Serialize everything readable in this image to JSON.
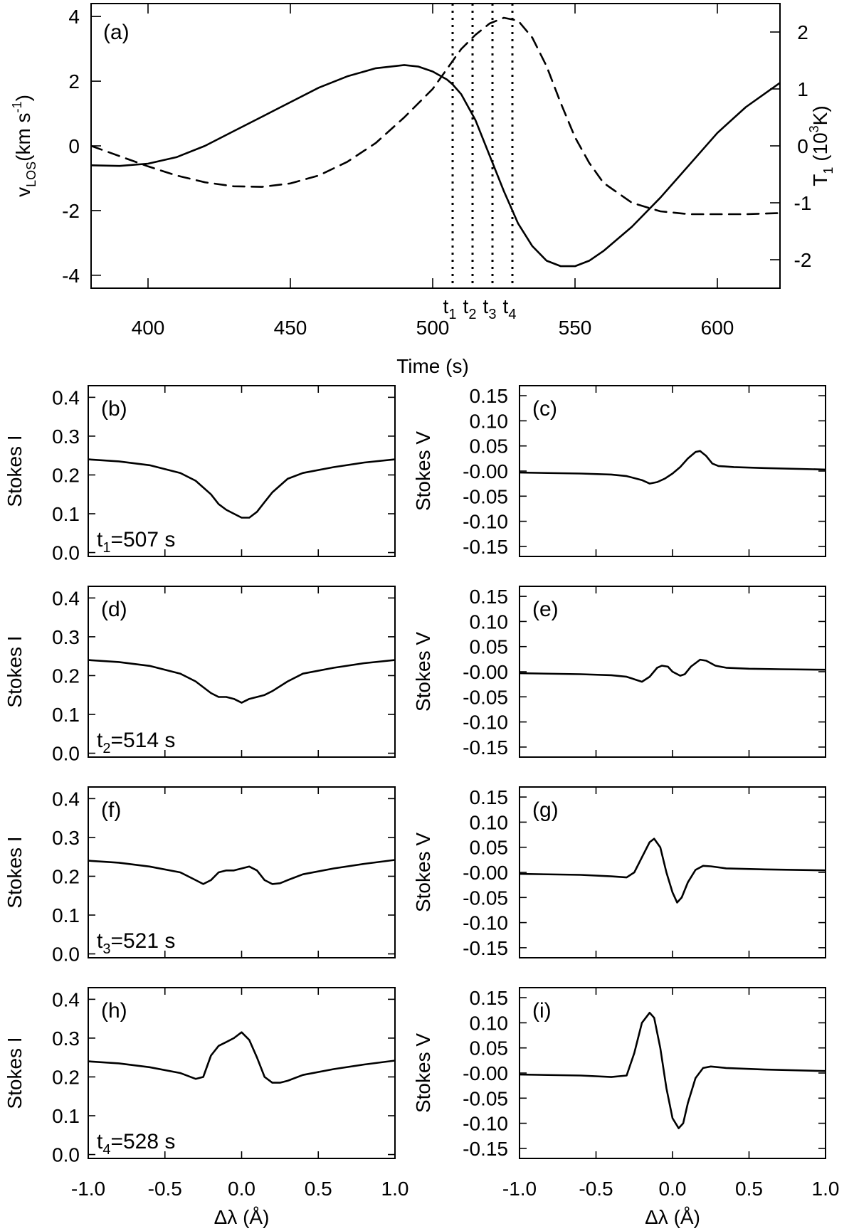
{
  "chart_data": [
    {
      "panel": "a",
      "type": "line",
      "panel_label": "(a)",
      "xlabel": "Time (s)",
      "xlim": [
        380,
        622
      ],
      "xticks": [
        400,
        450,
        500,
        550,
        600
      ],
      "xtick_labels": [
        "400",
        "450",
        "500",
        "550",
        "600"
      ],
      "ylabel_left": {
        "main": "v",
        "sub": "LOS",
        "unit_pre": "(km s",
        "unit_sup": "-1",
        "unit_post": ")"
      },
      "ylim_left": [
        -4.4,
        4.4
      ],
      "yticks_left": [
        -4,
        -2,
        0,
        2,
        4
      ],
      "ytick_labels_left": [
        "-4",
        "-2",
        "0",
        "2",
        "4"
      ],
      "ylabel_right": {
        "main": "T",
        "sub": "1",
        "unit_pre": " (10",
        "unit_sup": "3",
        "unit_post": "K)"
      },
      "ylim_right": [
        -2.5,
        2.5
      ],
      "yticks_right": [
        -2,
        -1,
        0,
        1,
        2
      ],
      "ytick_labels_right": [
        "-2",
        "-1",
        "0",
        "1",
        "2"
      ],
      "series": [
        {
          "name": "v_LOS",
          "style": "solid",
          "axis": "left",
          "x": [
            380,
            390,
            400,
            410,
            420,
            430,
            440,
            450,
            460,
            470,
            480,
            490,
            495,
            500,
            505,
            507,
            510,
            515,
            520,
            525,
            530,
            535,
            540,
            545,
            550,
            555,
            560,
            570,
            580,
            590,
            600,
            610,
            622
          ],
          "y": [
            -0.6,
            -0.62,
            -0.55,
            -0.35,
            0.0,
            0.45,
            0.9,
            1.35,
            1.8,
            2.15,
            2.4,
            2.5,
            2.45,
            2.3,
            2.05,
            1.9,
            1.6,
            0.8,
            -0.3,
            -1.4,
            -2.4,
            -3.1,
            -3.55,
            -3.72,
            -3.72,
            -3.55,
            -3.25,
            -2.5,
            -1.6,
            -0.6,
            0.4,
            1.2,
            1.95
          ]
        },
        {
          "name": "T_1",
          "style": "dashed",
          "axis": "right",
          "x": [
            380,
            390,
            400,
            410,
            420,
            430,
            440,
            450,
            460,
            470,
            480,
            490,
            500,
            505,
            510,
            515,
            520,
            525,
            530,
            535,
            540,
            545,
            550,
            555,
            560,
            570,
            580,
            590,
            600,
            610,
            622
          ],
          "y": [
            0.0,
            -0.18,
            -0.36,
            -0.52,
            -0.64,
            -0.71,
            -0.72,
            -0.66,
            -0.52,
            -0.28,
            0.05,
            0.5,
            1.0,
            1.35,
            1.7,
            1.95,
            2.15,
            2.25,
            2.2,
            1.9,
            1.4,
            0.75,
            0.15,
            -0.3,
            -0.65,
            -1.0,
            -1.15,
            -1.2,
            -1.2,
            -1.2,
            -1.18
          ]
        }
      ],
      "markers": [
        {
          "time": 507,
          "label": "t",
          "sub": "1"
        },
        {
          "time": 514,
          "label": "t",
          "sub": "2"
        },
        {
          "time": 521,
          "label": "t",
          "sub": "3"
        },
        {
          "time": 528,
          "label": "t",
          "sub": "4"
        }
      ]
    },
    {
      "panel": "b",
      "type": "line",
      "panel_label": "(b)",
      "ylabel": "Stokes I",
      "ylim": [
        -0.01,
        0.43
      ],
      "yticks": [
        0.0,
        0.1,
        0.2,
        0.3,
        0.4
      ],
      "ytick_labels": [
        "0.0",
        "0.1",
        "0.2",
        "0.3",
        "0.4"
      ],
      "xlim": [
        -1.0,
        1.0
      ],
      "annotation": {
        "label": "t",
        "sub": "1",
        "text": "=507 s"
      },
      "x": [
        -1.0,
        -0.8,
        -0.6,
        -0.4,
        -0.3,
        -0.2,
        -0.15,
        -0.1,
        -0.05,
        0.0,
        0.05,
        0.1,
        0.15,
        0.2,
        0.3,
        0.4,
        0.6,
        0.8,
        1.0
      ],
      "y": [
        0.24,
        0.235,
        0.225,
        0.205,
        0.185,
        0.15,
        0.125,
        0.11,
        0.1,
        0.09,
        0.09,
        0.105,
        0.13,
        0.155,
        0.19,
        0.205,
        0.22,
        0.232,
        0.24
      ]
    },
    {
      "panel": "c",
      "type": "line",
      "panel_label": "(c)",
      "ylabel": "Stokes V",
      "ylim": [
        -0.17,
        0.17
      ],
      "yticks": [
        -0.15,
        -0.1,
        -0.05,
        0.0,
        0.05,
        0.1,
        0.15
      ],
      "ytick_labels": [
        "-0.15",
        "-0.10",
        "-0.05",
        "-0.00",
        "0.05",
        "0.10",
        "0.15"
      ],
      "xlim": [
        -1.0,
        1.0
      ],
      "x": [
        -1.0,
        -0.6,
        -0.4,
        -0.3,
        -0.2,
        -0.15,
        -0.1,
        -0.05,
        0.0,
        0.05,
        0.1,
        0.15,
        0.18,
        0.22,
        0.26,
        0.3,
        0.4,
        0.6,
        1.0
      ],
      "y": [
        -0.003,
        -0.005,
        -0.007,
        -0.01,
        -0.018,
        -0.025,
        -0.022,
        -0.015,
        -0.005,
        0.008,
        0.025,
        0.038,
        0.04,
        0.03,
        0.015,
        0.01,
        0.008,
        0.006,
        0.003
      ]
    },
    {
      "panel": "d",
      "type": "line",
      "panel_label": "(d)",
      "ylabel": "Stokes I",
      "ylim": [
        -0.01,
        0.43
      ],
      "yticks": [
        0.0,
        0.1,
        0.2,
        0.3,
        0.4
      ],
      "ytick_labels": [
        "0.0",
        "0.1",
        "0.2",
        "0.3",
        "0.4"
      ],
      "xlim": [
        -1.0,
        1.0
      ],
      "annotation": {
        "label": "t",
        "sub": "2",
        "text": "=514 s"
      },
      "x": [
        -1.0,
        -0.8,
        -0.6,
        -0.4,
        -0.3,
        -0.2,
        -0.15,
        -0.1,
        -0.05,
        0.0,
        0.05,
        0.1,
        0.15,
        0.2,
        0.3,
        0.4,
        0.6,
        0.8,
        1.0
      ],
      "y": [
        0.24,
        0.235,
        0.225,
        0.205,
        0.185,
        0.155,
        0.145,
        0.145,
        0.14,
        0.13,
        0.14,
        0.145,
        0.15,
        0.16,
        0.185,
        0.205,
        0.22,
        0.232,
        0.24
      ]
    },
    {
      "panel": "e",
      "type": "line",
      "panel_label": "(e)",
      "ylabel": "Stokes V",
      "ylim": [
        -0.17,
        0.17
      ],
      "yticks": [
        -0.15,
        -0.1,
        -0.05,
        0.0,
        0.05,
        0.1,
        0.15
      ],
      "ytick_labels": [
        "-0.15",
        "-0.10",
        "-0.05",
        "-0.00",
        "0.05",
        "0.10",
        "0.15"
      ],
      "xlim": [
        -1.0,
        1.0
      ],
      "x": [
        -1.0,
        -0.6,
        -0.4,
        -0.3,
        -0.25,
        -0.2,
        -0.15,
        -0.1,
        -0.07,
        -0.03,
        0.0,
        0.05,
        0.08,
        0.12,
        0.18,
        0.22,
        0.28,
        0.35,
        0.5,
        0.7,
        1.0
      ],
      "y": [
        -0.003,
        -0.005,
        -0.007,
        -0.01,
        -0.015,
        -0.02,
        -0.01,
        0.008,
        0.012,
        0.01,
        0.0,
        -0.008,
        -0.005,
        0.01,
        0.024,
        0.022,
        0.012,
        0.008,
        0.006,
        0.005,
        0.004
      ]
    },
    {
      "panel": "f",
      "type": "line",
      "panel_label": "(f)",
      "ylabel": "Stokes I",
      "ylim": [
        -0.01,
        0.43
      ],
      "yticks": [
        0.0,
        0.1,
        0.2,
        0.3,
        0.4
      ],
      "ytick_labels": [
        "0.0",
        "0.1",
        "0.2",
        "0.3",
        "0.4"
      ],
      "xlim": [
        -1.0,
        1.0
      ],
      "annotation": {
        "label": "t",
        "sub": "3",
        "text": "=521 s"
      },
      "x": [
        -1.0,
        -0.8,
        -0.6,
        -0.4,
        -0.3,
        -0.25,
        -0.2,
        -0.15,
        -0.1,
        -0.05,
        0.0,
        0.05,
        0.1,
        0.15,
        0.2,
        0.25,
        0.3,
        0.4,
        0.6,
        0.8,
        1.0
      ],
      "y": [
        0.24,
        0.235,
        0.225,
        0.21,
        0.19,
        0.18,
        0.19,
        0.21,
        0.215,
        0.215,
        0.22,
        0.225,
        0.215,
        0.19,
        0.18,
        0.182,
        0.19,
        0.205,
        0.22,
        0.232,
        0.242
      ]
    },
    {
      "panel": "g",
      "type": "line",
      "panel_label": "(g)",
      "ylabel": "Stokes V",
      "ylim": [
        -0.17,
        0.17
      ],
      "yticks": [
        -0.15,
        -0.1,
        -0.05,
        0.0,
        0.05,
        0.1,
        0.15
      ],
      "ytick_labels": [
        "-0.15",
        "-0.10",
        "-0.05",
        "-0.00",
        "0.05",
        "0.10",
        "0.15"
      ],
      "xlim": [
        -1.0,
        1.0
      ],
      "x": [
        -1.0,
        -0.6,
        -0.4,
        -0.3,
        -0.25,
        -0.2,
        -0.15,
        -0.12,
        -0.08,
        -0.04,
        0.0,
        0.03,
        0.06,
        0.1,
        0.15,
        0.2,
        0.25,
        0.35,
        0.6,
        1.0
      ],
      "y": [
        -0.003,
        -0.005,
        -0.008,
        -0.01,
        0.0,
        0.03,
        0.06,
        0.067,
        0.05,
        0.0,
        -0.04,
        -0.06,
        -0.05,
        -0.02,
        0.005,
        0.013,
        0.012,
        0.008,
        0.006,
        0.004
      ]
    },
    {
      "panel": "h",
      "type": "line",
      "panel_label": "(h)",
      "ylabel": "Stokes I",
      "ylim": [
        -0.01,
        0.43
      ],
      "yticks": [
        0.0,
        0.1,
        0.2,
        0.3,
        0.4
      ],
      "ytick_labels": [
        "0.0",
        "0.1",
        "0.2",
        "0.3",
        "0.4"
      ],
      "xlim": [
        -1.0,
        1.0
      ],
      "xlabel": "Δλ (Å)",
      "xticks": [
        -1.0,
        -0.5,
        0.0,
        0.5,
        1.0
      ],
      "xtick_labels": [
        "-1.0",
        "-0.5",
        "0.0",
        "0.5",
        "1.0"
      ],
      "annotation": {
        "label": "t",
        "sub": "4",
        "text": "=528 s"
      },
      "x": [
        -1.0,
        -0.8,
        -0.6,
        -0.4,
        -0.3,
        -0.25,
        -0.2,
        -0.15,
        -0.1,
        -0.05,
        0.0,
        0.05,
        0.1,
        0.15,
        0.2,
        0.25,
        0.3,
        0.4,
        0.6,
        0.8,
        1.0
      ],
      "y": [
        0.24,
        0.235,
        0.225,
        0.21,
        0.195,
        0.2,
        0.255,
        0.28,
        0.29,
        0.3,
        0.315,
        0.295,
        0.25,
        0.2,
        0.185,
        0.185,
        0.19,
        0.205,
        0.22,
        0.232,
        0.242
      ]
    },
    {
      "panel": "i",
      "type": "line",
      "panel_label": "(i)",
      "ylabel": "Stokes V",
      "ylim": [
        -0.17,
        0.17
      ],
      "yticks": [
        -0.15,
        -0.1,
        -0.05,
        0.0,
        0.05,
        0.1,
        0.15
      ],
      "ytick_labels": [
        "-0.15",
        "-0.10",
        "-0.05",
        "-0.00",
        "0.05",
        "0.10",
        "0.15"
      ],
      "xlim": [
        -1.0,
        1.0
      ],
      "xlabel": "Δλ (Å)",
      "xticks": [
        -1.0,
        -0.5,
        0.0,
        0.5,
        1.0
      ],
      "xtick_labels": [
        "-1.0",
        "-0.5",
        "0.0",
        "0.5",
        "1.0"
      ],
      "x": [
        -1.0,
        -0.6,
        -0.4,
        -0.3,
        -0.25,
        -0.2,
        -0.15,
        -0.12,
        -0.08,
        -0.04,
        0.0,
        0.04,
        0.07,
        0.1,
        0.15,
        0.2,
        0.25,
        0.35,
        0.6,
        1.0
      ],
      "y": [
        -0.003,
        -0.005,
        -0.008,
        -0.005,
        0.04,
        0.1,
        0.12,
        0.11,
        0.05,
        -0.03,
        -0.09,
        -0.11,
        -0.1,
        -0.06,
        -0.01,
        0.01,
        0.013,
        0.01,
        0.007,
        0.004
      ]
    }
  ]
}
